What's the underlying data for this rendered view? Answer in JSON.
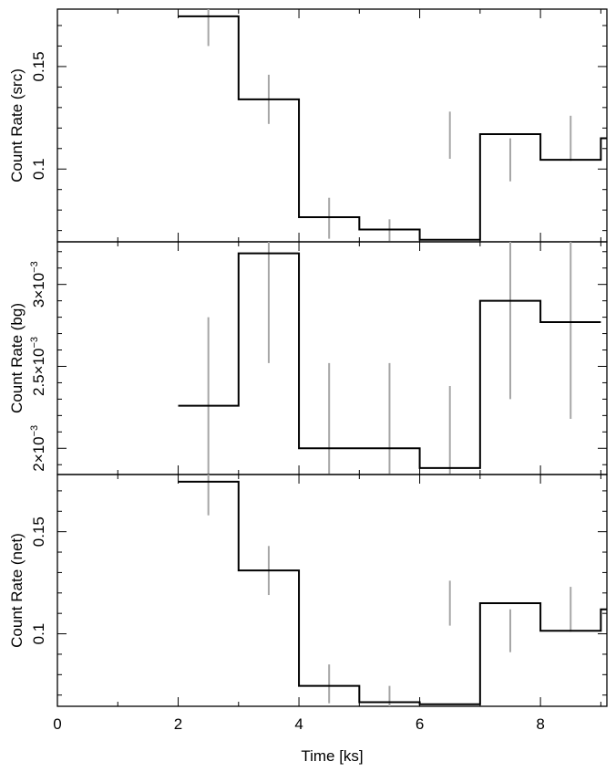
{
  "chart_data": [
    {
      "type": "step",
      "ylabel": "Count Rate (src)",
      "ylim": [
        0.0645,
        0.178
      ],
      "yticks": [
        0.1,
        0.15
      ],
      "ytick_labels": [
        "0.1",
        "0.15"
      ],
      "xlim": [
        0,
        9.1
      ],
      "bin_edges": [
        2,
        3,
        4,
        5,
        6,
        7,
        8,
        9
      ],
      "values": [
        0.1745,
        0.134,
        0.0765,
        0.0705,
        0.0655,
        0.117,
        0.1045,
        0.115
      ],
      "errors": [
        {
          "x": 2.5,
          "low": 0.16,
          "high": 0.178
        },
        {
          "x": 3.5,
          "low": 0.122,
          "high": 0.146
        },
        {
          "x": 4.5,
          "low": 0.066,
          "high": 0.086
        },
        {
          "x": 5.5,
          "low": 0.0645,
          "high": 0.0755
        },
        {
          "x": 6.5,
          "low": 0.105,
          "high": 0.128
        },
        {
          "x": 7.5,
          "low": 0.094,
          "high": 0.115
        },
        {
          "x": 8.5,
          "low": 0.104,
          "high": 0.126
        }
      ]
    },
    {
      "type": "step",
      "ylabel": "Count Rate (bg)",
      "ylim": [
        0.00184,
        0.00326
      ],
      "yticks": [
        0.002,
        0.0025,
        0.003
      ],
      "ytick_labels": [
        {
          "mant": "2",
          "exp": "−3"
        },
        {
          "mant": "2.5",
          "exp": "−3"
        },
        {
          "mant": "3",
          "exp": "−3"
        }
      ],
      "xlim": [
        0,
        9.1
      ],
      "bin_edges": [
        2,
        3,
        4,
        5,
        6,
        7,
        8,
        9
      ],
      "values": [
        0.00226,
        0.00319,
        0.002,
        0.002,
        0.00188,
        0.0029,
        0.00277
      ],
      "errors": [
        {
          "x": 2.5,
          "low": 0.00184,
          "high": 0.0028
        },
        {
          "x": 3.5,
          "low": 0.00252,
          "high": 0.00326
        },
        {
          "x": 4.5,
          "low": 0.00184,
          "high": 0.00252
        },
        {
          "x": 5.5,
          "low": 0.00184,
          "high": 0.00252
        },
        {
          "x": 6.5,
          "low": 0.00184,
          "high": 0.00238
        },
        {
          "x": 7.5,
          "low": 0.0023,
          "high": 0.00326
        },
        {
          "x": 8.5,
          "low": 0.00218,
          "high": 0.00326
        }
      ]
    },
    {
      "type": "step",
      "ylabel": "Count Rate (net)",
      "ylim": [
        0.0645,
        0.178
      ],
      "yticks": [
        0.1,
        0.15
      ],
      "ytick_labels": [
        "0.1",
        "0.15"
      ],
      "xlim": [
        0,
        9.1
      ],
      "xlabel": "Time [ks]",
      "xticks": [
        0,
        2,
        4,
        6,
        8
      ],
      "xtick_labels": [
        "0",
        "2",
        "4",
        "6",
        "8"
      ],
      "bin_edges": [
        2,
        3,
        4,
        5,
        6,
        7,
        8,
        9
      ],
      "values": [
        0.1745,
        0.131,
        0.0745,
        0.0665,
        0.0655,
        0.115,
        0.1015,
        0.112
      ],
      "errors": [
        {
          "x": 2.5,
          "low": 0.158,
          "high": 0.178
        },
        {
          "x": 3.5,
          "low": 0.119,
          "high": 0.143
        },
        {
          "x": 4.5,
          "low": 0.066,
          "high": 0.085
        },
        {
          "x": 5.5,
          "low": 0.0645,
          "high": 0.0745
        },
        {
          "x": 6.5,
          "low": 0.104,
          "high": 0.126
        },
        {
          "x": 7.5,
          "low": 0.091,
          "high": 0.112
        },
        {
          "x": 8.5,
          "low": 0.101,
          "high": 0.123
        }
      ]
    }
  ]
}
